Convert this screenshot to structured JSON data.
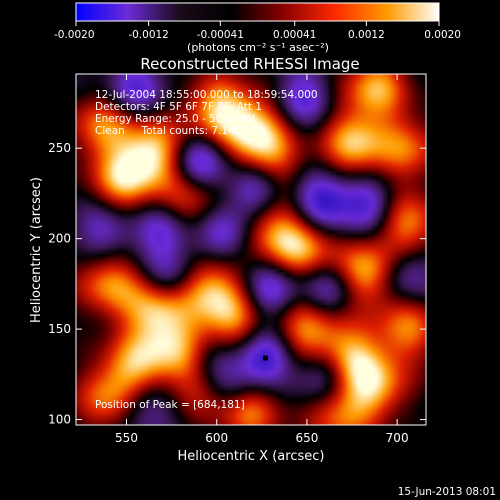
{
  "chart_data": {
    "type": "heatmap",
    "title": "Reconstructed RHESSI Image",
    "xlabel": "Heliocentric X (arcsec)",
    "ylabel": "Heliocentric Y (arcsec)",
    "xlim": [
      522,
      716
    ],
    "ylim": [
      97,
      291
    ],
    "x_ticks": [
      550,
      600,
      650,
      700
    ],
    "y_ticks": [
      100,
      150,
      200,
      250
    ],
    "colorbar": {
      "min": -0.002,
      "max": 0.002,
      "ticks": [
        "-0.0020",
        "-0.0012",
        "-0.00041",
        "0.00041",
        "0.0012",
        "0.0020"
      ],
      "label": "(photons cm⁻² s⁻¹ asec⁻²)",
      "colors": [
        "#0000ff",
        "#6a2cd8",
        "#1a0a1a",
        "#000000",
        "#8a0000",
        "#ff2a00",
        "#ff9a00",
        "#ffffff"
      ]
    },
    "annotations": [
      "12-Jul-2004 18:55:00.000 to 18:59:54.000",
      "Detectors: 4F 5F 6F 7F 8F, Att 1",
      "Energy Range: 25.0 - 50.0 keV",
      "Clean     Total counts: 7.14E+03"
    ],
    "peak_label": "Position of Peak = [684,181]",
    "peak": [
      684,
      181
    ],
    "marker": [
      627,
      134
    ],
    "bright_spots": [
      [
        548,
        232,
        0.9
      ],
      [
        565,
        248,
        1.0
      ],
      [
        567,
        160,
        1.0
      ],
      [
        600,
        272,
        0.9
      ],
      [
        620,
        262,
        0.9
      ],
      [
        628,
        242,
        0.85
      ],
      [
        688,
        284,
        0.9
      ],
      [
        676,
        253,
        0.95
      ],
      [
        648,
        195,
        0.85
      ],
      [
        684,
        181,
        1.0
      ],
      [
        706,
        208,
        0.8
      ],
      [
        540,
        175,
        0.8
      ],
      [
        595,
        175,
        0.85
      ],
      [
        608,
        155,
        0.85
      ],
      [
        540,
        112,
        0.75
      ],
      [
        555,
        130,
        0.8
      ],
      [
        580,
        137,
        0.75
      ],
      [
        618,
        105,
        0.8
      ],
      [
        650,
        150,
        0.85
      ],
      [
        673,
        135,
        0.9
      ],
      [
        688,
        118,
        0.85
      ],
      [
        706,
        150,
        0.75
      ],
      [
        630,
        205,
        0.7
      ],
      [
        536,
        262,
        0.75
      ],
      [
        706,
        250,
        0.7
      ],
      [
        595,
        120,
        0.7
      ],
      [
        668,
        102,
        0.7
      ],
      [
        584,
        220,
        0.7
      ]
    ],
    "dark_spots": [
      [
        622,
        229,
        1.0
      ],
      [
        590,
        242,
        0.9
      ],
      [
        658,
        220,
        0.95
      ],
      [
        683,
        218,
        0.8
      ],
      [
        571,
        205,
        0.8
      ],
      [
        604,
        202,
        0.8
      ],
      [
        630,
        171,
        0.8
      ],
      [
        662,
        171,
        0.7
      ],
      [
        626,
        134,
        1.0
      ],
      [
        596,
        132,
        0.8
      ],
      [
        575,
        178,
        0.7
      ],
      [
        555,
        283,
        0.7
      ],
      [
        704,
        180,
        0.7
      ],
      [
        660,
        125,
        0.75
      ],
      [
        560,
        108,
        0.6
      ],
      [
        648,
        278,
        0.7
      ],
      [
        538,
        205,
        0.6
      ],
      [
        607,
        118,
        0.65
      ]
    ]
  },
  "footer": {
    "date": "15-Jun-2013 08:01"
  }
}
